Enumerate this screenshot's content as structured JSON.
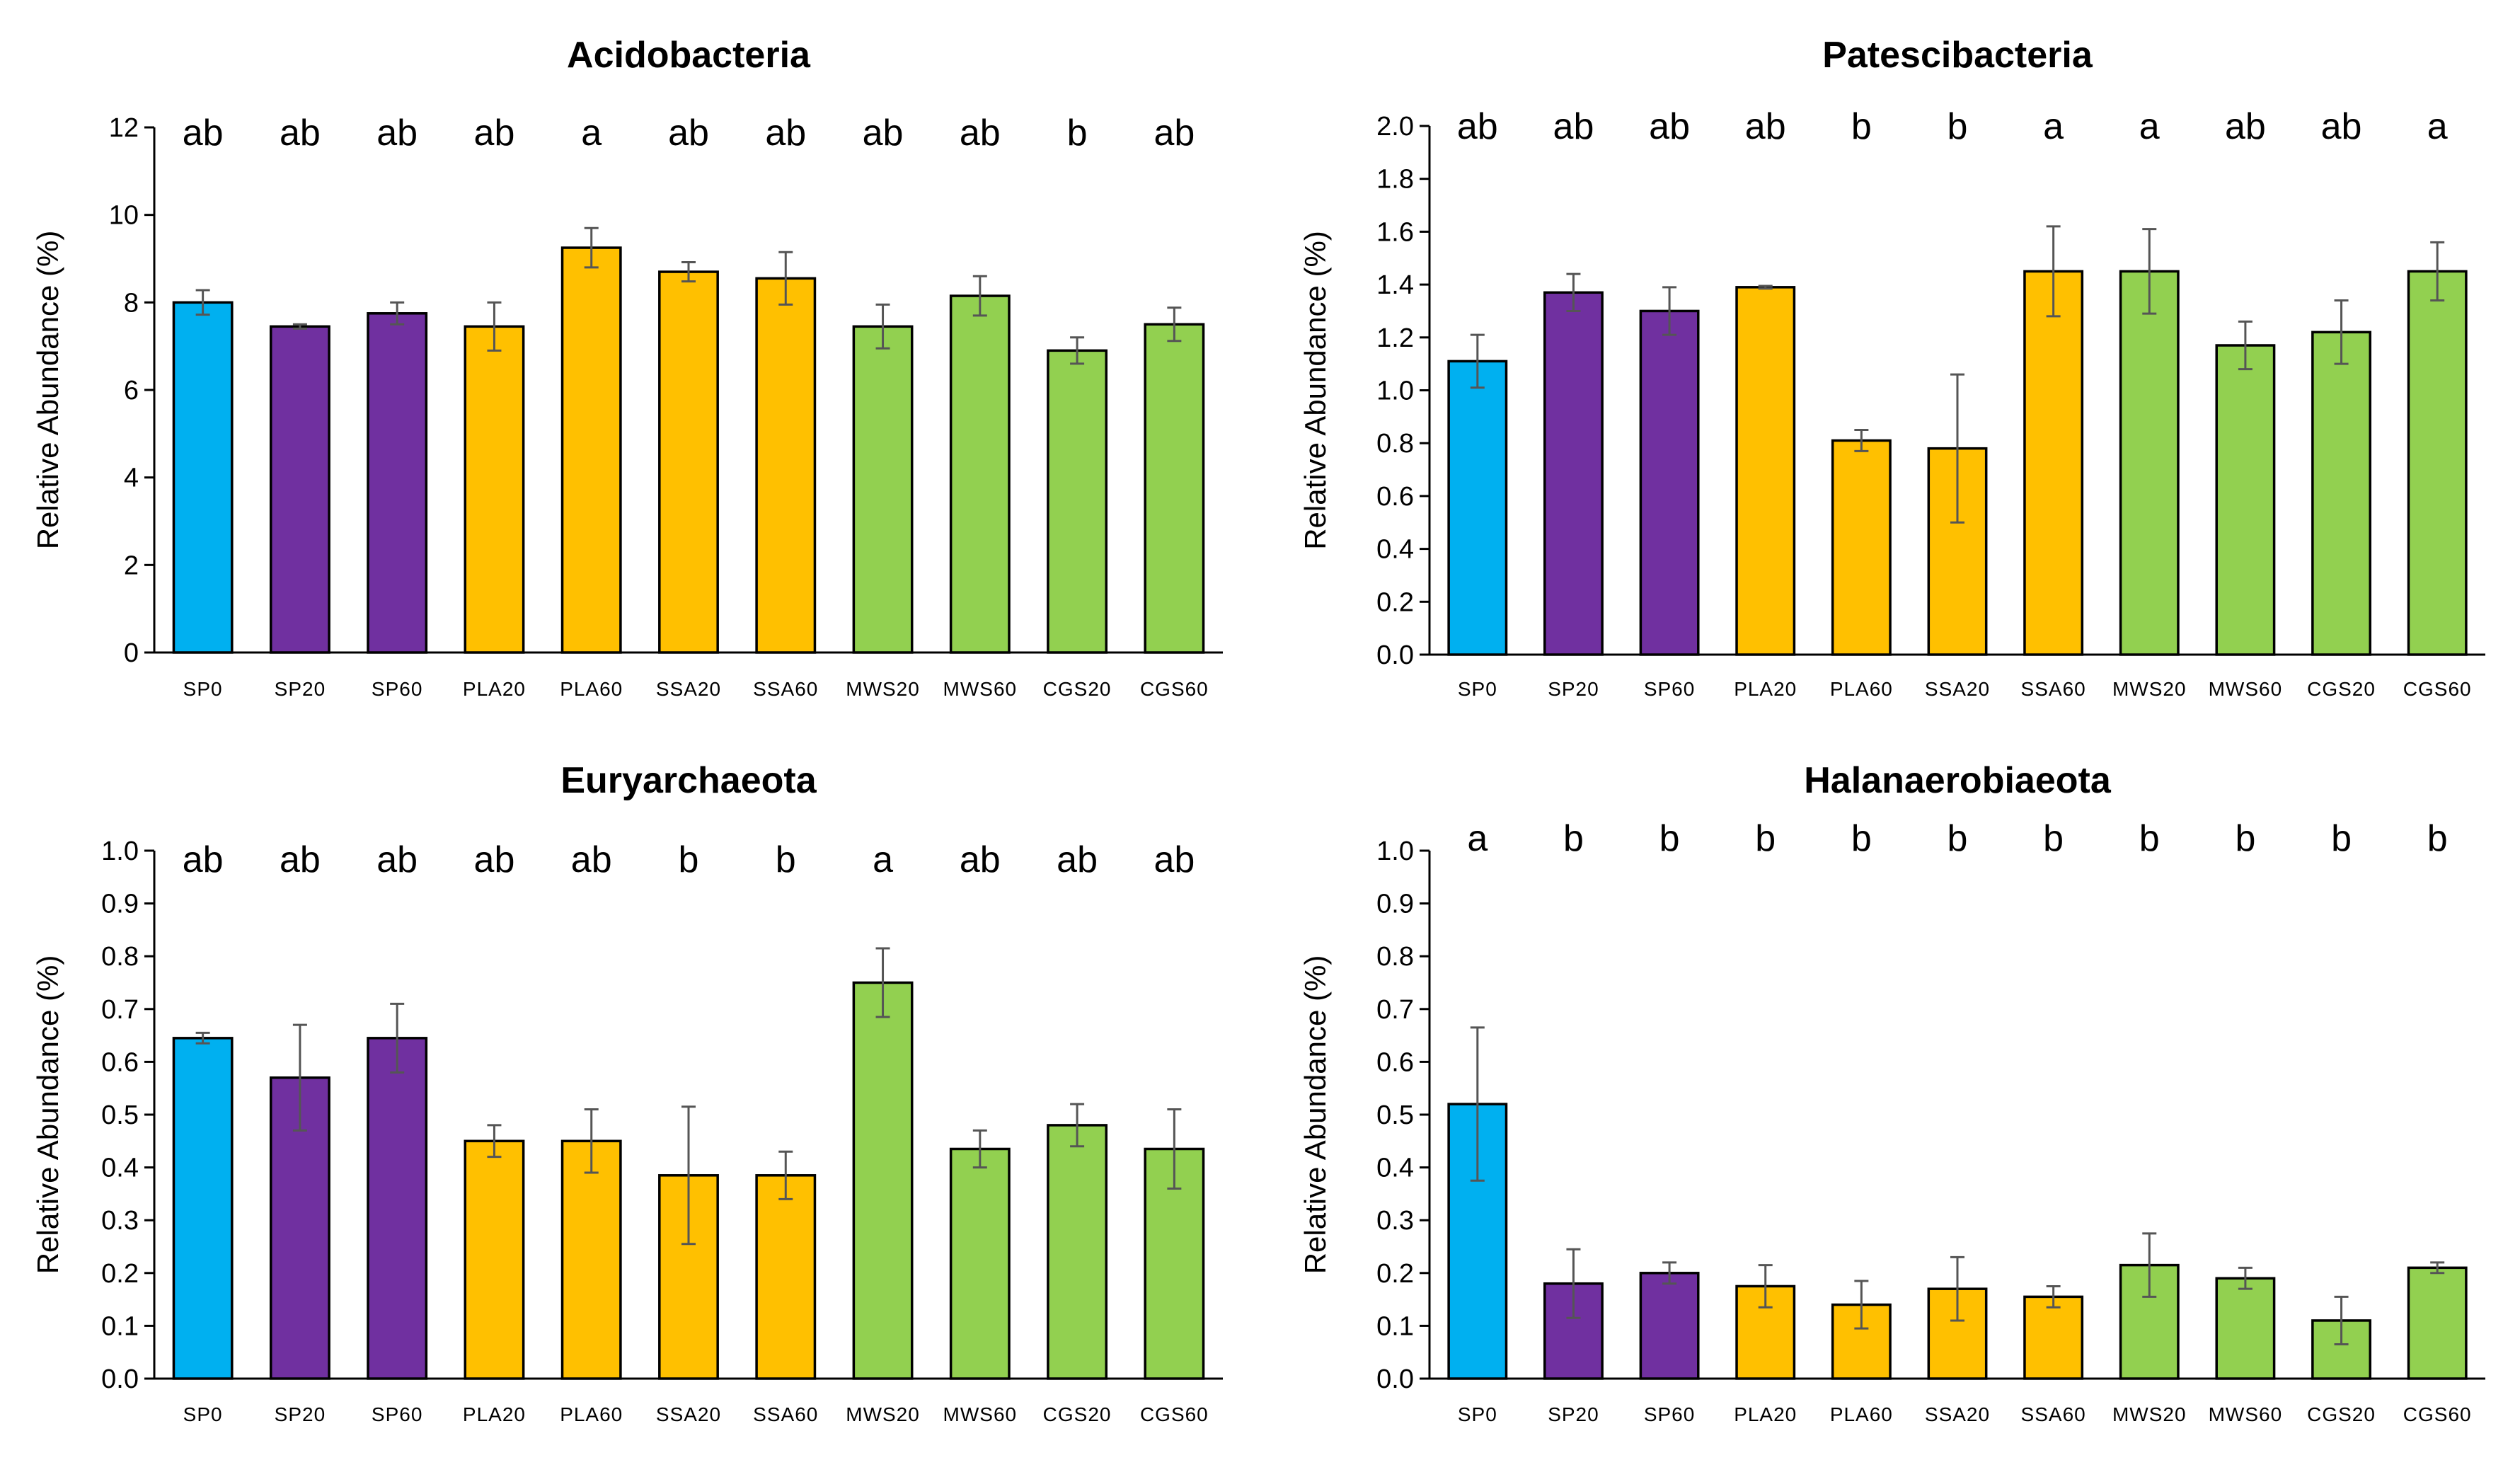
{
  "colors": {
    "control": "#00b0f0",
    "SP": "#7030a0",
    "PLA_SSA": "#ffc000",
    "MWS_CGS": "#92d050"
  },
  "chart_data": [
    {
      "type": "bar",
      "title": "Acidobacteria",
      "ylabel": "Relative Abundance (%)",
      "ylim": [
        0,
        12
      ],
      "ystep": 2,
      "ydecimals": 0,
      "categories": [
        "SP0",
        "SP20",
        "SP60",
        "PLA20",
        "PLA60",
        "SSA20",
        "SSA60",
        "MWS20",
        "MWS60",
        "CGS20",
        "CGS60"
      ],
      "values": [
        8.0,
        7.45,
        7.75,
        7.45,
        9.25,
        8.7,
        8.55,
        7.45,
        8.15,
        6.9,
        7.5
      ],
      "errors": [
        0.28,
        0.05,
        0.25,
        0.55,
        0.45,
        0.22,
        0.6,
        0.5,
        0.45,
        0.3,
        0.38
      ],
      "letters": [
        "ab",
        "ab",
        "ab",
        "ab",
        "a",
        "ab",
        "ab",
        "ab",
        "ab",
        "b",
        "ab"
      ],
      "bar_colors": [
        "control",
        "SP",
        "SP",
        "PLA_SSA",
        "PLA_SSA",
        "PLA_SSA",
        "PLA_SSA",
        "MWS_CGS",
        "MWS_CGS",
        "MWS_CGS",
        "MWS_CGS"
      ]
    },
    {
      "type": "bar",
      "title": "Patescibacteria",
      "ylabel": "Relative Abundance (%)",
      "ylim": [
        0,
        2.0
      ],
      "ystep": 0.2,
      "ydecimals": 1,
      "categories": [
        "SP0",
        "SP20",
        "SP60",
        "PLA20",
        "PLA60",
        "SSA20",
        "SSA60",
        "MWS20",
        "MWS60",
        "CGS20",
        "CGS60"
      ],
      "values": [
        1.11,
        1.37,
        1.3,
        1.39,
        0.81,
        0.78,
        1.45,
        1.45,
        1.17,
        1.22,
        1.45
      ],
      "errors": [
        0.1,
        0.07,
        0.09,
        0.005,
        0.04,
        0.28,
        0.17,
        0.16,
        0.09,
        0.12,
        0.11
      ],
      "letters": [
        "ab",
        "ab",
        "ab",
        "ab",
        "b",
        "b",
        "a",
        "a",
        "ab",
        "ab",
        "a"
      ],
      "bar_colors": [
        "control",
        "SP",
        "SP",
        "PLA_SSA",
        "PLA_SSA",
        "PLA_SSA",
        "PLA_SSA",
        "MWS_CGS",
        "MWS_CGS",
        "MWS_CGS",
        "MWS_CGS"
      ]
    },
    {
      "type": "bar",
      "title": "Euryarchaeota",
      "ylabel": "Relative Abundance (%)",
      "ylim": [
        0,
        1.0
      ],
      "ystep": 0.1,
      "ydecimals": 1,
      "categories": [
        "SP0",
        "SP20",
        "SP60",
        "PLA20",
        "PLA60",
        "SSA20",
        "SSA60",
        "MWS20",
        "MWS60",
        "CGS20",
        "CGS60"
      ],
      "values": [
        0.645,
        0.57,
        0.645,
        0.45,
        0.45,
        0.385,
        0.385,
        0.75,
        0.435,
        0.48,
        0.435
      ],
      "errors": [
        0.01,
        0.1,
        0.065,
        0.03,
        0.06,
        0.13,
        0.045,
        0.065,
        0.035,
        0.04,
        0.075
      ],
      "letters": [
        "ab",
        "ab",
        "ab",
        "ab",
        "ab",
        "b",
        "b",
        "a",
        "ab",
        "ab",
        "ab"
      ],
      "bar_colors": [
        "control",
        "SP",
        "SP",
        "PLA_SSA",
        "PLA_SSA",
        "PLA_SSA",
        "PLA_SSA",
        "MWS_CGS",
        "MWS_CGS",
        "MWS_CGS",
        "MWS_CGS"
      ]
    },
    {
      "type": "bar",
      "title": "Halanaerobiaeota",
      "ylabel": "Relative Abundance (%)",
      "ylim": [
        0,
        1.0
      ],
      "ystep": 0.1,
      "ydecimals": 1,
      "categories": [
        "SP0",
        "SP20",
        "SP60",
        "PLA20",
        "PLA60",
        "SSA20",
        "SSA60",
        "MWS20",
        "MWS60",
        "CGS20",
        "CGS60"
      ],
      "values": [
        0.52,
        0.18,
        0.2,
        0.175,
        0.14,
        0.17,
        0.155,
        0.215,
        0.19,
        0.11,
        0.21
      ],
      "errors": [
        0.145,
        0.065,
        0.02,
        0.04,
        0.045,
        0.06,
        0.02,
        0.06,
        0.02,
        0.045,
        0.01
      ],
      "letters": [
        "a",
        "b",
        "b",
        "b",
        "b",
        "b",
        "b",
        "b",
        "b",
        "b",
        "b"
      ],
      "bar_colors": [
        "control",
        "SP",
        "SP",
        "PLA_SSA",
        "PLA_SSA",
        "PLA_SSA",
        "PLA_SSA",
        "MWS_CGS",
        "MWS_CGS",
        "MWS_CGS",
        "MWS_CGS"
      ]
    }
  ]
}
